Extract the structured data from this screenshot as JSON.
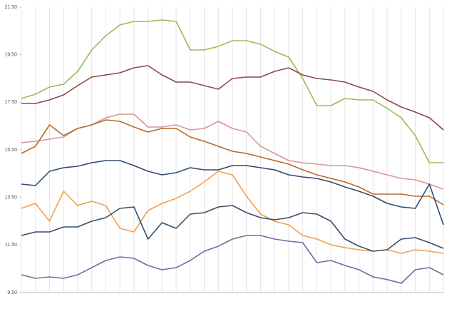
{
  "chart_data": {
    "type": "line",
    "categories": [
      null,
      null,
      null,
      null,
      null,
      null,
      null,
      null,
      null,
      null,
      null,
      null,
      null,
      null,
      null,
      null,
      null,
      null,
      null,
      null,
      null,
      null,
      null,
      null,
      null,
      null,
      null,
      null,
      null,
      null,
      null
    ],
    "ylim": [
      9.5,
      21.5
    ],
    "yticks": [
      {
        "value": 9.5,
        "label": "9.50"
      },
      {
        "value": 11.5,
        "label": "11.50"
      },
      {
        "value": 13.5,
        "label": "13.50"
      },
      {
        "value": 15.5,
        "label": "15.50"
      },
      {
        "value": 17.5,
        "label": "17.50"
      },
      {
        "value": 19.5,
        "label": "19.50"
      },
      {
        "value": 21.5,
        "label": "21.50"
      }
    ],
    "grid": true,
    "series": [
      {
        "color": "#9bbb59",
        "values": [
          17.66,
          17.84,
          18.14,
          18.26,
          18.8,
          19.7,
          20.3,
          20.75,
          20.9,
          20.9,
          20.96,
          20.9,
          19.7,
          19.7,
          19.85,
          20.09,
          20.09,
          19.94,
          19.64,
          19.4,
          18.5,
          17.36,
          17.36,
          17.66,
          17.6,
          17.6,
          17.24,
          16.85,
          16.1,
          14.96,
          14.96
        ]
      },
      {
        "color": "#8b4a4a",
        "values": [
          17.45,
          17.45,
          17.6,
          17.81,
          18.2,
          18.56,
          18.65,
          18.74,
          18.95,
          19.04,
          18.65,
          18.35,
          18.35,
          18.2,
          18.05,
          18.5,
          18.56,
          18.56,
          18.8,
          18.95,
          18.65,
          18.5,
          18.44,
          18.35,
          18.14,
          17.96,
          17.6,
          17.3,
          17.09,
          16.85,
          16.34
        ]
      },
      {
        "color": "#d99694",
        "values": [
          15.8,
          15.86,
          15.95,
          16.04,
          16.4,
          16.55,
          16.85,
          17.0,
          17.0,
          16.46,
          16.46,
          16.55,
          16.34,
          16.4,
          16.7,
          16.4,
          16.25,
          15.65,
          15.35,
          15.05,
          14.96,
          14.9,
          14.84,
          14.84,
          14.75,
          14.6,
          14.45,
          14.3,
          14.24,
          14.06,
          13.85
        ]
      },
      {
        "color": "#b8692e",
        "values": [
          15.35,
          15.65,
          16.55,
          16.1,
          16.4,
          16.55,
          16.76,
          16.7,
          16.46,
          16.25,
          16.4,
          16.4,
          16.04,
          15.86,
          15.65,
          15.44,
          15.35,
          15.2,
          15.05,
          14.9,
          14.66,
          14.45,
          14.3,
          14.15,
          13.94,
          13.64,
          13.64,
          13.64,
          13.55,
          13.55,
          13.19
        ]
      },
      {
        "color": "#2f4b6e",
        "values": [
          14.06,
          14.0,
          14.6,
          14.75,
          14.81,
          14.96,
          15.05,
          15.05,
          14.84,
          14.6,
          14.45,
          14.54,
          14.75,
          14.66,
          14.66,
          14.84,
          14.84,
          14.75,
          14.66,
          14.45,
          14.36,
          14.3,
          14.15,
          13.94,
          13.76,
          13.55,
          13.25,
          13.1,
          13.04,
          14.06,
          12.35
        ]
      },
      {
        "color": "#f0a050",
        "values": [
          13.04,
          13.25,
          12.5,
          13.76,
          13.16,
          13.34,
          13.16,
          12.2,
          12.05,
          12.95,
          13.25,
          13.46,
          13.76,
          14.15,
          14.6,
          14.45,
          13.55,
          12.8,
          12.5,
          12.35,
          11.9,
          11.75,
          11.51,
          11.39,
          11.3,
          11.24,
          11.3,
          11.15,
          11.3,
          11.24,
          11.15
        ]
      },
      {
        "color": "#34506c",
        "values": [
          11.9,
          12.05,
          12.05,
          12.26,
          12.26,
          12.5,
          12.65,
          13.04,
          13.1,
          11.75,
          12.44,
          12.2,
          12.8,
          12.86,
          13.1,
          13.16,
          12.86,
          12.65,
          12.56,
          12.65,
          12.86,
          12.8,
          12.5,
          11.75,
          11.45,
          11.24,
          11.3,
          11.75,
          11.81,
          11.6,
          11.36
        ]
      },
      {
        "color": "#8064a2",
        "values": [
          10.25,
          10.1,
          10.16,
          10.1,
          10.25,
          10.55,
          10.85,
          11.0,
          10.94,
          10.64,
          10.46,
          10.55,
          10.85,
          11.24,
          11.45,
          11.75,
          11.9,
          11.9,
          11.75,
          11.66,
          11.6,
          10.76,
          10.85,
          10.64,
          10.46,
          10.16,
          10.05,
          9.89,
          10.46,
          10.55,
          10.25
        ]
      }
    ]
  }
}
